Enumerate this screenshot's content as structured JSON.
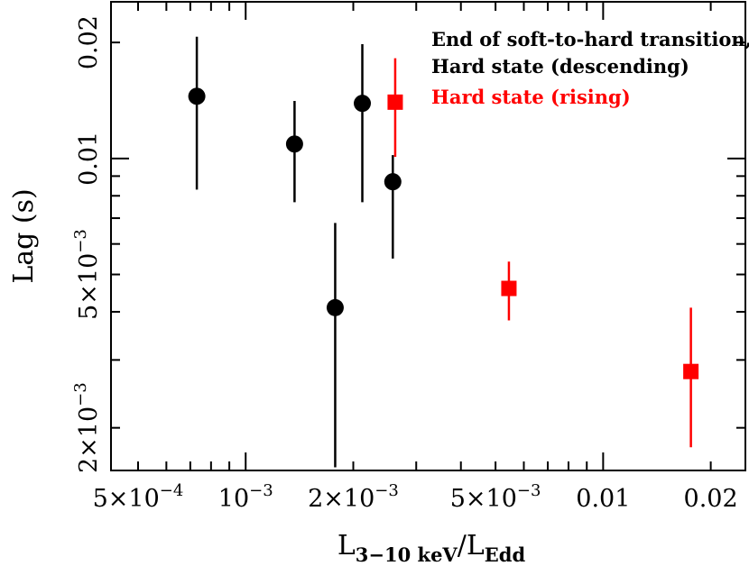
{
  "chart_data": {
    "type": "scatter",
    "xscale": "log",
    "yscale": "log",
    "xlim": [
      0.00042,
      0.025
    ],
    "ylim": [
      0.00155,
      0.0255
    ],
    "xlabel": {
      "base": "L",
      "sub": "3−10 keV",
      "sep": "/",
      "base2": "L",
      "sub2": "Edd"
    },
    "ylabel": "Lag (s)",
    "grid": false,
    "legend_position": "top-right",
    "x_ticks": [
      {
        "value": 0.0005,
        "mant": "5×10",
        "exp": "−4"
      },
      {
        "value": 0.001,
        "mant": "10",
        "exp": "−3"
      },
      {
        "value": 0.002,
        "mant": "2×10",
        "exp": "−3"
      },
      {
        "value": 0.005,
        "mant": "5×10",
        "exp": "−3"
      },
      {
        "value": 0.01,
        "mant": "0.01",
        "exp": ""
      },
      {
        "value": 0.02,
        "mant": "0.02",
        "exp": ""
      }
    ],
    "y_ticks": [
      {
        "value": 0.002,
        "mant": "2×10",
        "exp": "−3"
      },
      {
        "value": 0.005,
        "mant": "5×10",
        "exp": "−3"
      },
      {
        "value": 0.01,
        "mant": "0.01",
        "exp": ""
      },
      {
        "value": 0.02,
        "mant": "0.02",
        "exp": ""
      }
    ],
    "series": [
      {
        "name": "End of soft-to-hard transition,",
        "name2": "Hard state (descending)",
        "color": "#000000",
        "marker": "circle",
        "points": [
          {
            "x": 0.00073,
            "y": 0.0145,
            "ylo": 0.0083,
            "yhi": 0.0207
          },
          {
            "x": 0.00137,
            "y": 0.0109,
            "ylo": 0.0077,
            "yhi": 0.0141
          },
          {
            "x": 0.00178,
            "y": 0.0041,
            "ylo": 0.00158,
            "yhi": 0.0068
          },
          {
            "x": 0.00212,
            "y": 0.0139,
            "ylo": 0.0077,
            "yhi": 0.0198
          },
          {
            "x": 0.00258,
            "y": 0.0087,
            "ylo": 0.0055,
            "yhi": 0.0102
          }
        ]
      },
      {
        "name": "Hard state (rising)",
        "color": "#ff0000",
        "marker": "square",
        "points": [
          {
            "x": 0.00262,
            "y": 0.014,
            "ylo": 0.0101,
            "yhi": 0.0182
          },
          {
            "x": 0.00545,
            "y": 0.0046,
            "ylo": 0.0038,
            "yhi": 0.0054
          },
          {
            "x": 0.0176,
            "y": 0.0028,
            "ylo": 0.00178,
            "yhi": 0.0041
          }
        ]
      }
    ]
  }
}
